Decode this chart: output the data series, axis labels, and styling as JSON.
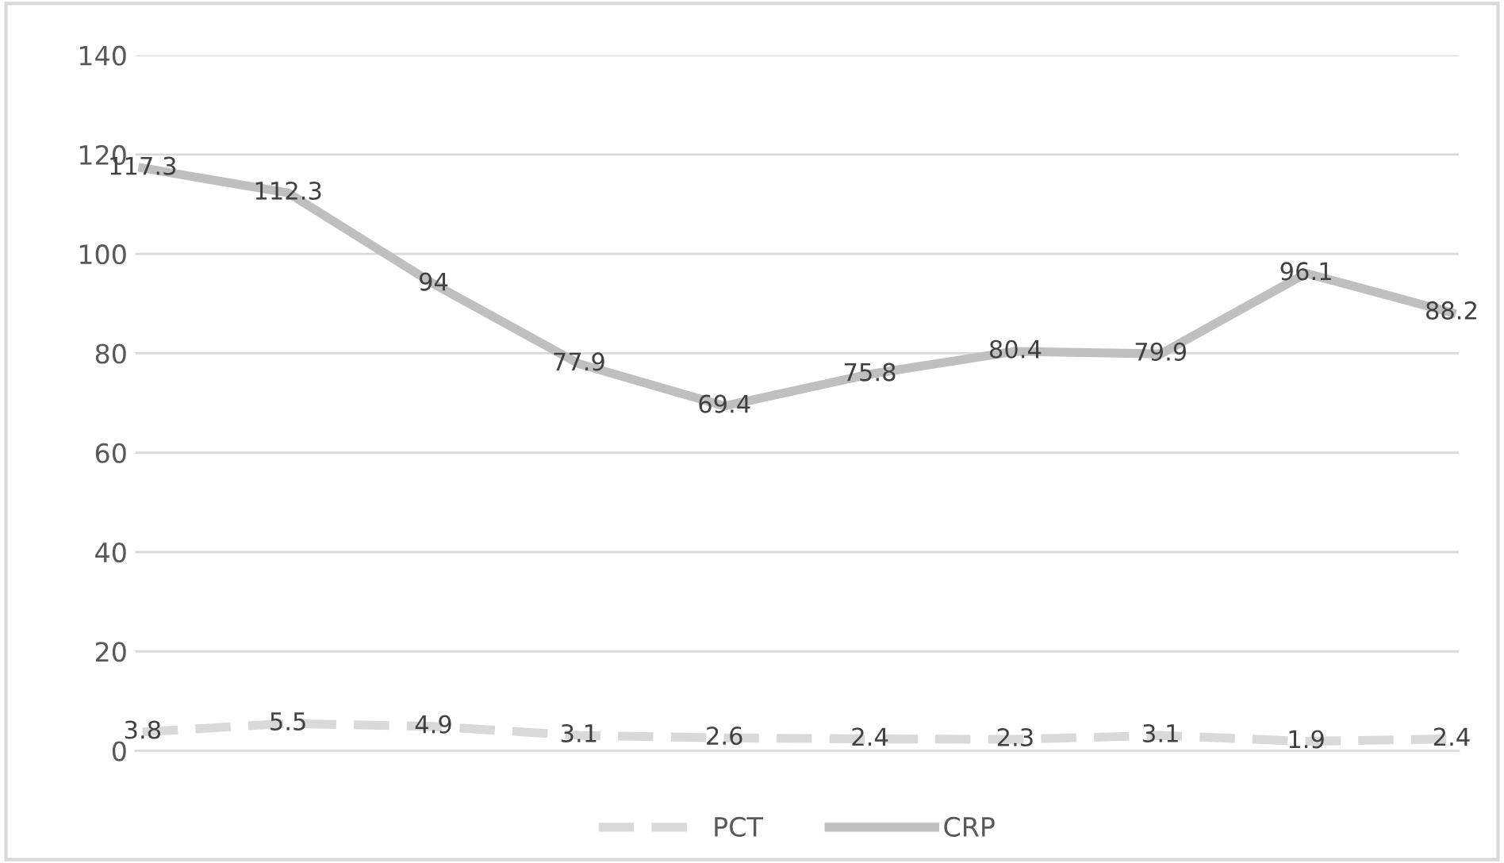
{
  "chart_data": {
    "type": "line",
    "categories": [
      null,
      null,
      null,
      null,
      null,
      null,
      null,
      null,
      null,
      null
    ],
    "series": [
      {
        "name": "PCT",
        "color": "#d9d9d9",
        "line_style": "dashed",
        "values": [
          3.8,
          5.5,
          4.9,
          3.1,
          2.6,
          2.4,
          2.3,
          3.1,
          1.9,
          2.4
        ]
      },
      {
        "name": "CRP",
        "color": "#bfbfbf",
        "line_style": "solid",
        "values": [
          117.3,
          112.3,
          94,
          77.9,
          69.4,
          75.8,
          80.4,
          79.9,
          96.1,
          88.2
        ]
      }
    ],
    "ylim": [
      0,
      140
    ],
    "yticks": [
      0,
      20,
      40,
      60,
      80,
      100,
      120,
      140
    ],
    "grid": "y",
    "legend": "bottom",
    "data_labels": true,
    "marker": "none"
  }
}
